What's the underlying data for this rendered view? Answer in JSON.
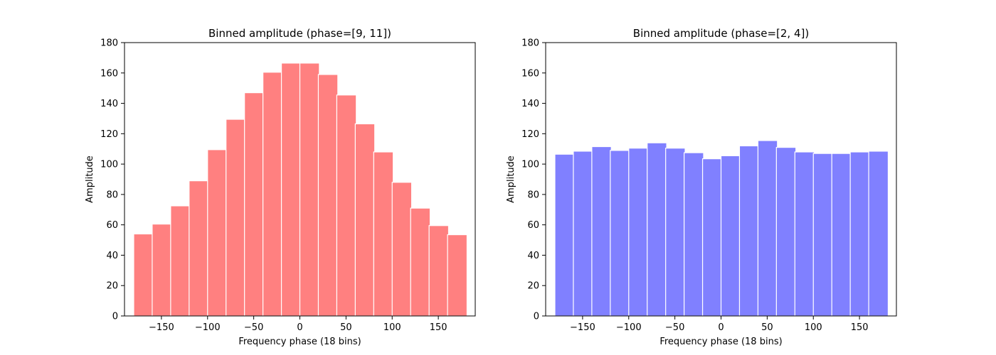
{
  "chart_data": [
    {
      "type": "bar",
      "title": "Binned amplitude (phase=[9, 11])",
      "xlabel": "Frequency phase (18 bins)",
      "ylabel": "Amplitude",
      "color": "#ff8080",
      "xlim": [
        -190,
        190
      ],
      "ylim": [
        0,
        180
      ],
      "bin_width": 21.1,
      "x_ticks": [
        -150,
        -100,
        -50,
        0,
        50,
        100,
        150
      ],
      "x_tick_labels": [
        "−150",
        "−100",
        "−50",
        "0",
        "50",
        "100",
        "150"
      ],
      "y_ticks": [
        0,
        20,
        40,
        60,
        80,
        100,
        120,
        140,
        160,
        180
      ],
      "y_tick_labels": [
        "0",
        "20",
        "40",
        "60",
        "80",
        "100",
        "120",
        "140",
        "160",
        "180"
      ],
      "categories": [
        -180,
        -160,
        -140,
        -120,
        -100,
        -80,
        -60,
        -40,
        -20,
        0,
        20,
        40,
        60,
        80,
        100,
        120,
        140,
        160
      ],
      "values": [
        54,
        60.5,
        72.5,
        89,
        109.5,
        129.5,
        147,
        160.5,
        166.5,
        166.5,
        159,
        145.5,
        126.5,
        108,
        88,
        71,
        59.5,
        53.5
      ]
    },
    {
      "type": "bar",
      "title": "Binned amplitude (phase=[2, 4])",
      "xlabel": "Frequency phase (18 bins)",
      "ylabel": "Amplitude",
      "color": "#8080ff",
      "xlim": [
        -190,
        190
      ],
      "ylim": [
        0,
        180
      ],
      "bin_width": 21.1,
      "x_ticks": [
        -150,
        -100,
        -50,
        0,
        50,
        100,
        150
      ],
      "x_tick_labels": [
        "−150",
        "−100",
        "−50",
        "0",
        "50",
        "100",
        "150"
      ],
      "y_ticks": [
        0,
        20,
        40,
        60,
        80,
        100,
        120,
        140,
        160,
        180
      ],
      "y_tick_labels": [
        "0",
        "20",
        "40",
        "60",
        "80",
        "100",
        "120",
        "140",
        "160",
        "180"
      ],
      "categories": [
        -180,
        -160,
        -140,
        -120,
        -100,
        -80,
        -60,
        -40,
        -20,
        0,
        20,
        40,
        60,
        80,
        100,
        120,
        140,
        160
      ],
      "values": [
        106.5,
        108.5,
        111.5,
        109,
        110.5,
        114,
        110.5,
        107.5,
        103.5,
        105.5,
        112,
        115.5,
        111,
        108,
        107,
        107,
        108,
        108.5
      ]
    }
  ]
}
